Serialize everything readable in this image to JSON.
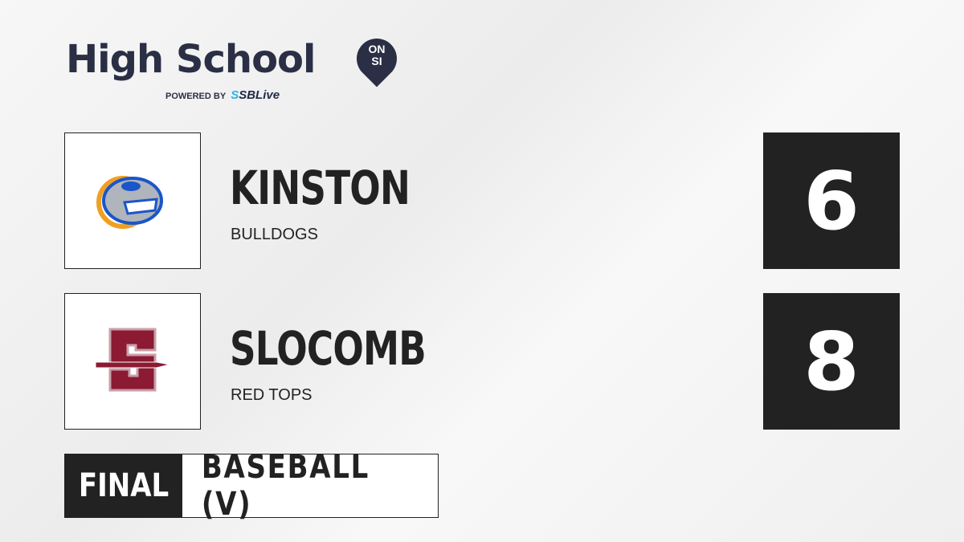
{
  "brand": {
    "title": "High School",
    "badge_top": "ON",
    "badge_bottom": "SI",
    "powered_by": "POWERED BY",
    "partner": "SBLive",
    "partner_prefix": "S"
  },
  "teams": [
    {
      "name": "KINSTON",
      "mascot": "BULLDOGS",
      "score": "6",
      "logo": "bulldog-logo",
      "colors": [
        "#1a56c9",
        "#f0a020",
        "#b0b4bc"
      ]
    },
    {
      "name": "SLOCOMB",
      "mascot": "RED TOPS",
      "score": "8",
      "logo": "s-spear-logo",
      "colors": [
        "#8b1a32"
      ]
    }
  ],
  "status": "FINAL",
  "sport": "BASEBALL (V)"
}
